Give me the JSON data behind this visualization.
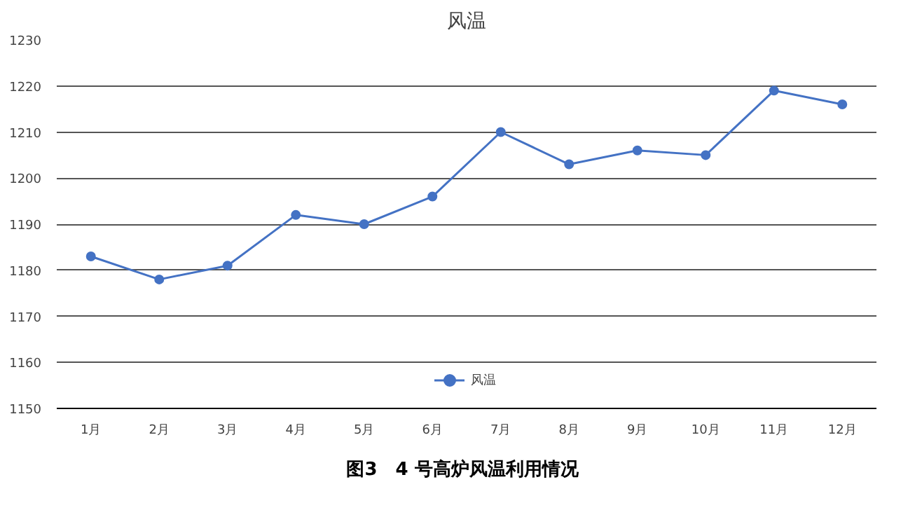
{
  "chart_data": {
    "type": "line",
    "title": "风温",
    "categories": [
      "1月",
      "2月",
      "3月",
      "4月",
      "5月",
      "6月",
      "7月",
      "8月",
      "9月",
      "10月",
      "11月",
      "12月"
    ],
    "series": [
      {
        "name": "风温",
        "color": "#4472c4",
        "values": [
          1183,
          1178,
          1181,
          1192,
          1190,
          1196,
          1210,
          1203,
          1206,
          1205,
          1219,
          1216
        ]
      }
    ],
    "ylim": [
      1150,
      1230
    ],
    "yticks": [
      1150,
      1160,
      1170,
      1180,
      1190,
      1200,
      1210,
      1220,
      1230
    ],
    "grid": "y",
    "legend": "bottom",
    "marker": "circle",
    "line_style": "solid",
    "annotations": [
      "图3　4 号高炉风温利用情况"
    ]
  }
}
